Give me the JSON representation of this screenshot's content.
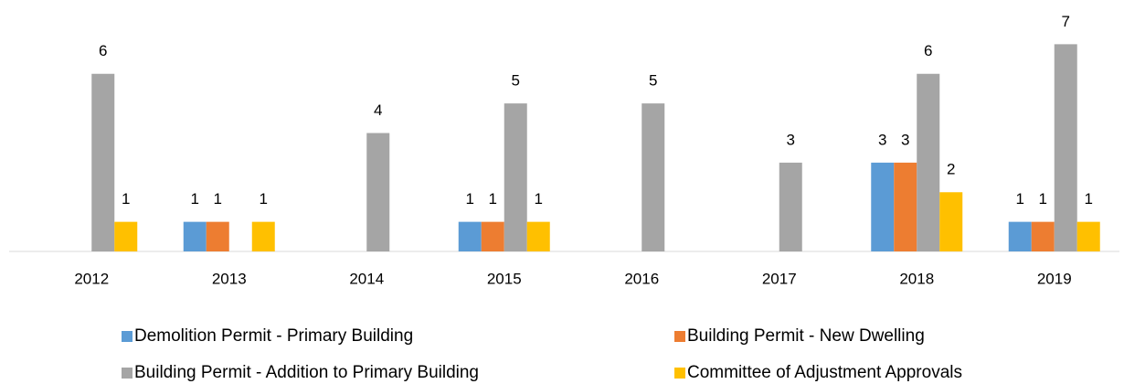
{
  "chart_data": {
    "type": "bar",
    "categories": [
      "2012",
      "2013",
      "2014",
      "2015",
      "2016",
      "2017",
      "2018",
      "2019"
    ],
    "series": [
      {
        "name": "Demolition Permit - Primary Building",
        "color": "#5b9bd5",
        "values": [
          null,
          1,
          null,
          1,
          null,
          null,
          3,
          1
        ]
      },
      {
        "name": "Building Permit - New Dwelling",
        "color": "#ed7d31",
        "values": [
          null,
          1,
          null,
          1,
          null,
          null,
          3,
          1
        ]
      },
      {
        "name": "Building Permit - Addition to Primary Building",
        "color": "#a5a5a5",
        "values": [
          6,
          null,
          4,
          5,
          5,
          3,
          6,
          7
        ]
      },
      {
        "name": "Committee of Adjustment Approvals",
        "color": "#ffc000",
        "values": [
          1,
          1,
          null,
          1,
          null,
          null,
          2,
          1
        ]
      }
    ],
    "ylim": [
      0,
      8
    ],
    "grid": false,
    "legend": "bottom"
  }
}
